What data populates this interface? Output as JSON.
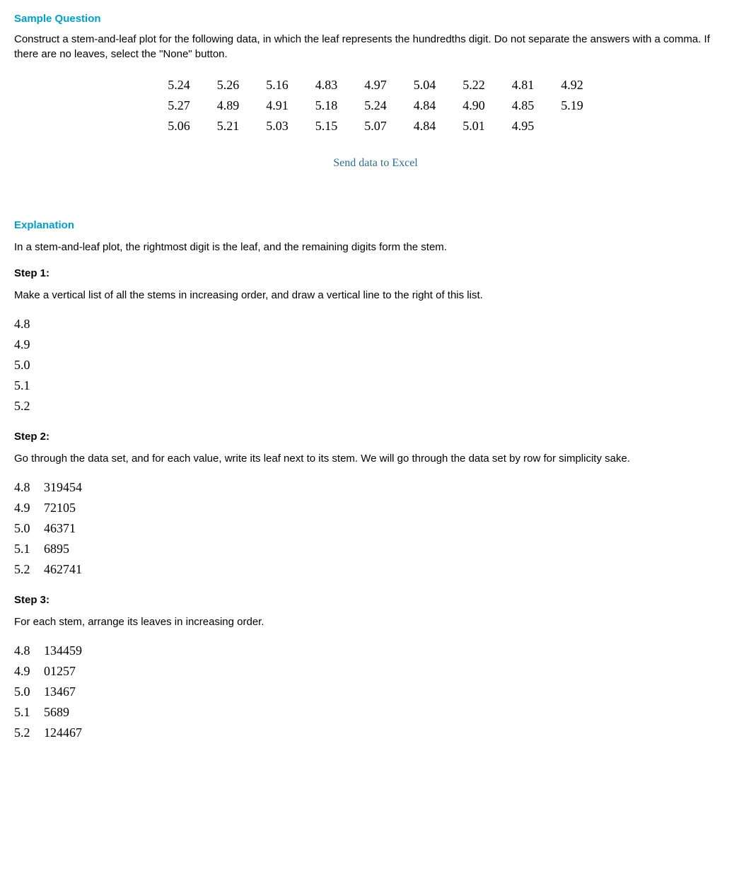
{
  "headers": {
    "sample_question": "Sample Question",
    "explanation": "Explanation"
  },
  "question_text": "Construct a stem-and-leaf plot for the following data, in which the leaf represents the hundredths digit. Do not separate the answers with a comma. If there are no leaves, select the \"None\" button.",
  "data_rows": [
    [
      "5.24",
      "5.26",
      "5.16",
      "4.83",
      "4.97",
      "5.04",
      "5.22",
      "4.81",
      "4.92"
    ],
    [
      "5.27",
      "4.89",
      "4.91",
      "5.18",
      "5.24",
      "4.84",
      "4.90",
      "4.85",
      "5.19"
    ],
    [
      "5.06",
      "5.21",
      "5.03",
      "5.15",
      "5.07",
      "4.84",
      "5.01",
      "4.95",
      ""
    ]
  ],
  "link_text": "Send data to Excel",
  "explanation_intro": "In a stem-and-leaf plot, the rightmost digit is the leaf, and the remaining digits form the stem.",
  "steps": {
    "step1": {
      "label": "Step 1:",
      "text": "Make a vertical list of all the stems in increasing order, and draw a vertical line to the right of this list.",
      "stems": [
        "4.8",
        "4.9",
        "5.0",
        "5.1",
        "5.2"
      ]
    },
    "step2": {
      "label": "Step 2:",
      "text": "Go through the data set, and for each value, write its leaf next to its stem. We will go through the data set by row for simplicity sake.",
      "rows": [
        {
          "stem": "4.8",
          "leaves": "319454"
        },
        {
          "stem": "4.9",
          "leaves": "72105"
        },
        {
          "stem": "5.0",
          "leaves": "46371"
        },
        {
          "stem": "5.1",
          "leaves": "6895"
        },
        {
          "stem": "5.2",
          "leaves": "462741"
        }
      ]
    },
    "step3": {
      "label": "Step 3:",
      "text": "For each stem, arrange its leaves in increasing order.",
      "rows": [
        {
          "stem": "4.8",
          "leaves": "134459"
        },
        {
          "stem": "4.9",
          "leaves": "01257"
        },
        {
          "stem": "5.0",
          "leaves": "13467"
        },
        {
          "stem": "5.1",
          "leaves": "5689"
        },
        {
          "stem": "5.2",
          "leaves": "124467"
        }
      ]
    }
  },
  "colors": {
    "header_color": "#00a0c8",
    "text_color": "#000000",
    "link_color": "#2e6b8c",
    "background_color": "#ffffff"
  }
}
